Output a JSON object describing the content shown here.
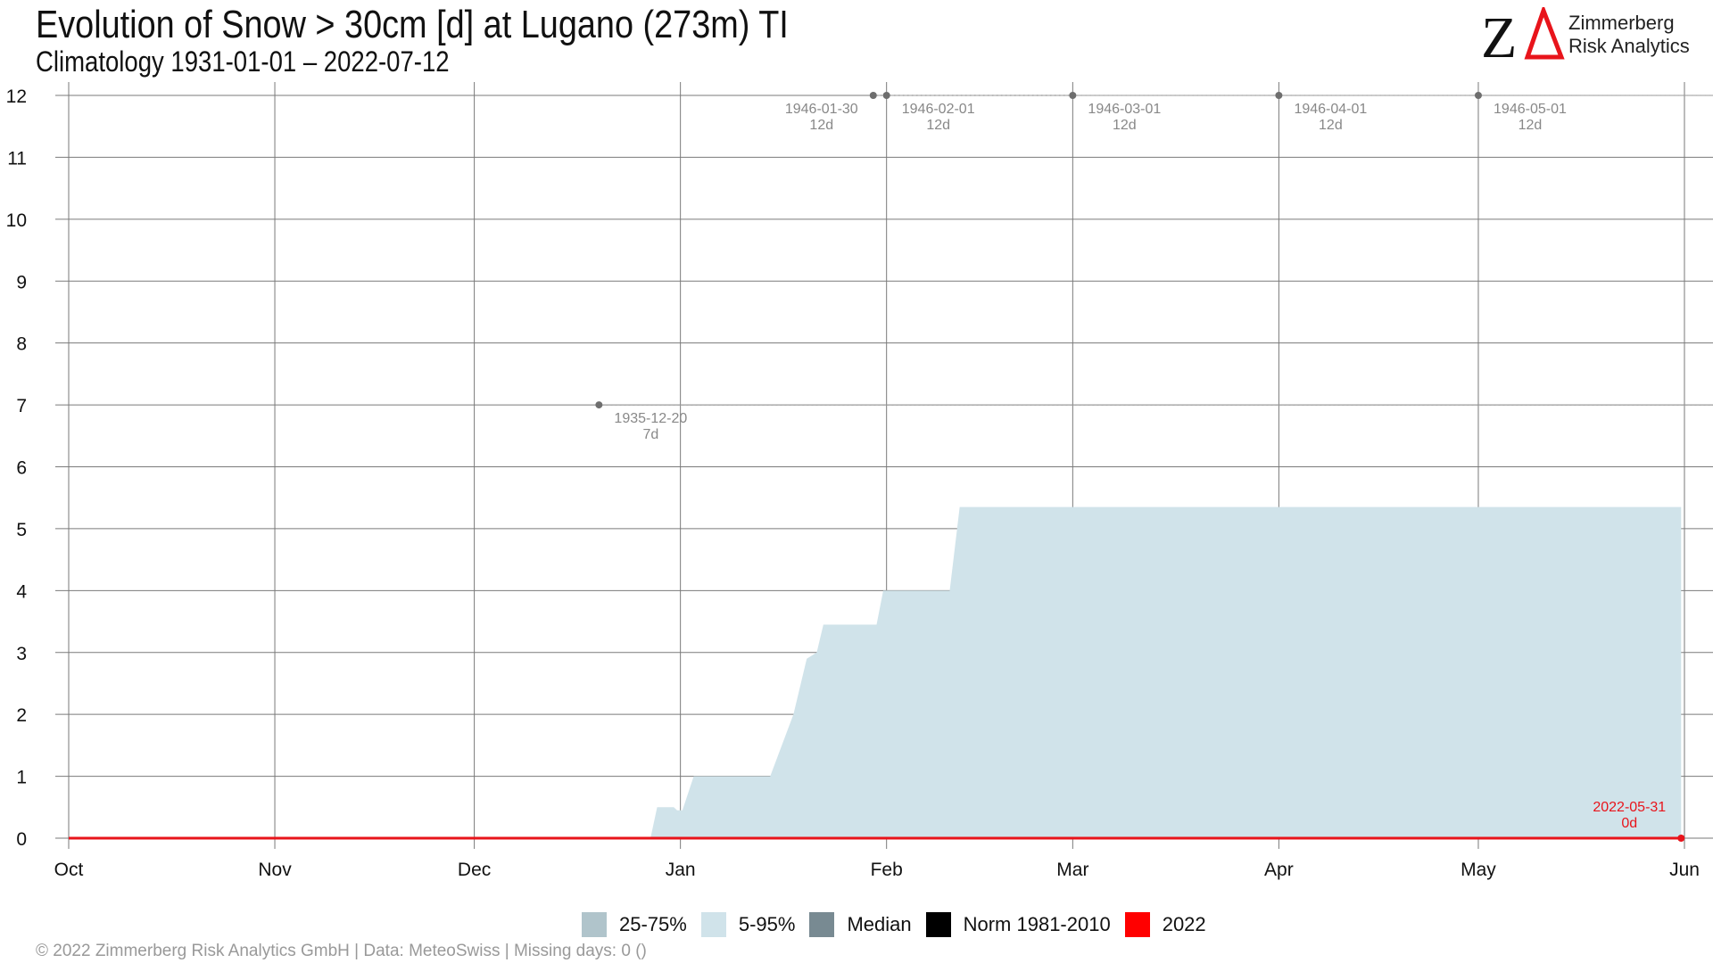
{
  "header": {
    "title": "Evolution of Snow > 30cm [d] at Lugano (273m) TI",
    "subtitle": "Climatology 1931-01-01 – 2022-07-12"
  },
  "logo": {
    "mark_z": "Z",
    "line1": "Zimmerberg",
    "line2": "Risk Analytics",
    "accent_color": "#e8141b"
  },
  "chart_data": {
    "type": "area",
    "ylim": [
      0,
      12
    ],
    "y_ticks": [
      "0",
      "1",
      "2",
      "3",
      "4",
      "5",
      "6",
      "7",
      "8",
      "9",
      "10",
      "11",
      "12"
    ],
    "x_ticks": [
      {
        "label": "Oct",
        "day": 0
      },
      {
        "label": "Nov",
        "day": 31
      },
      {
        "label": "Dec",
        "day": 61
      },
      {
        "label": "Jan",
        "day": 92
      },
      {
        "label": "Feb",
        "day": 123
      },
      {
        "label": "Mar",
        "day": 151
      },
      {
        "label": "Apr",
        "day": 182
      },
      {
        "label": "May",
        "day": 212
      },
      {
        "label": "Jun",
        "day": 243
      }
    ],
    "band_5_95": [
      [
        87.5,
        0
      ],
      [
        88.5,
        0.5
      ],
      [
        91,
        0.5
      ],
      [
        91.5,
        0.45
      ],
      [
        92.3,
        0.45
      ],
      [
        94,
        1
      ],
      [
        105.5,
        1
      ],
      [
        109,
        2
      ],
      [
        111,
        2.9
      ],
      [
        112.5,
        3
      ],
      [
        113.5,
        3.45
      ],
      [
        121.5,
        3.45
      ],
      [
        122.5,
        4
      ],
      [
        132.5,
        4
      ],
      [
        134,
        5.35
      ],
      [
        242.5,
        5.35
      ],
      [
        242.5,
        0
      ]
    ],
    "series": [
      {
        "name": "2022",
        "color": "#e8141b",
        "points": [
          [
            0,
            0
          ],
          [
            242.5,
            0
          ]
        ]
      }
    ],
    "annotations": [
      {
        "day": 79.75,
        "value": 7,
        "date": "1935-12-20",
        "label": "7d",
        "side": "right"
      },
      {
        "day": 121,
        "value": 12,
        "date": "1946-01-30",
        "label": "12d",
        "side": "left"
      },
      {
        "day": 123,
        "value": 12,
        "date": "1946-02-01",
        "label": "12d",
        "side": "right"
      },
      {
        "day": 151,
        "value": 12,
        "date": "1946-03-01",
        "label": "12d",
        "side": "right"
      },
      {
        "day": 182,
        "value": 12,
        "date": "1946-04-01",
        "label": "12d",
        "side": "right"
      },
      {
        "day": 212,
        "value": 12,
        "date": "1946-05-01",
        "label": "12d",
        "side": "right"
      },
      {
        "day": 242.5,
        "value": 0,
        "date": "2022-05-31",
        "label": "0d",
        "side": "left",
        "color": "#e8141b"
      }
    ],
    "legend": [
      {
        "label": "25-75%",
        "color": "#b0c4cb"
      },
      {
        "label": "5-95%",
        "color": "#d0e3ea"
      },
      {
        "label": "Median",
        "color": "#788a92"
      },
      {
        "label": "Norm 1981-2010",
        "color": "#000000"
      },
      {
        "label": "2022",
        "color": "#ff0000"
      }
    ]
  },
  "footer": {
    "text": "©  2022 Zimmerberg Risk Analytics GmbH | Data: MeteoSwiss | Missing days: 0 ()"
  }
}
